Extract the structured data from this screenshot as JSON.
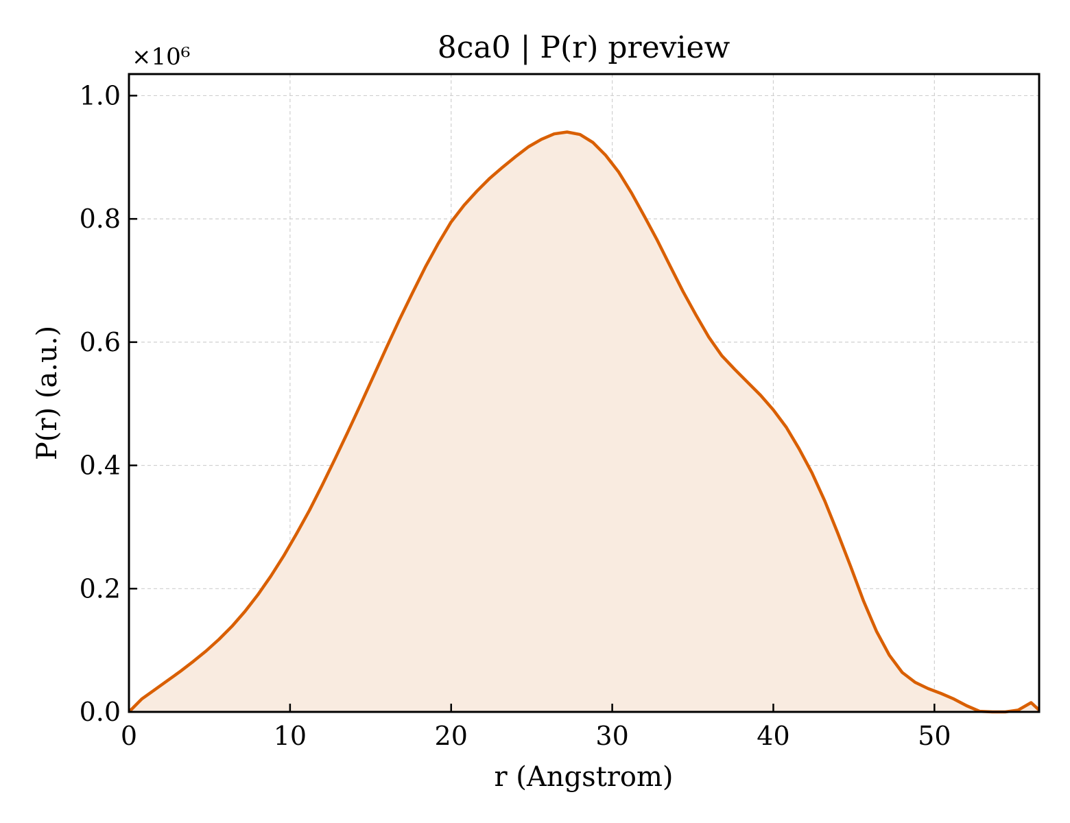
{
  "chart_data": {
    "type": "line",
    "title": "8ca0 | P(r) preview",
    "xlabel": "r (Angstrom)",
    "ylabel": "P(r) (a.u.)",
    "y_offset_label": "×10⁶",
    "xlim": [
      0,
      56.5
    ],
    "ylim": [
      0,
      1.035
    ],
    "x_ticks": [
      0,
      10,
      20,
      30,
      40,
      50
    ],
    "x_tick_labels": [
      "0",
      "10",
      "20",
      "30",
      "40",
      "50"
    ],
    "y_ticks": [
      0.0,
      0.2,
      0.4,
      0.6,
      0.8,
      1.0
    ],
    "y_tick_labels": [
      "0.0",
      "0.2",
      "0.4",
      "0.6",
      "0.8",
      "1.0"
    ],
    "grid": true,
    "line_color": "#d95f02",
    "fill_color": "#f9ebe0",
    "series": [
      {
        "x": [
          0,
          0.8,
          1.6,
          2.4,
          3.2,
          4.0,
          4.8,
          5.6,
          6.4,
          7.2,
          8.0,
          8.8,
          9.6,
          10.4,
          11.2,
          12.0,
          12.8,
          13.6,
          14.4,
          15.2,
          16.0,
          16.8,
          17.6,
          18.4,
          19.2,
          20.0,
          20.8,
          21.6,
          22.4,
          23.2,
          24.0,
          24.8,
          25.6,
          26.4,
          27.2,
          28.0,
          28.8,
          29.6,
          30.4,
          31.2,
          32.0,
          32.8,
          33.6,
          34.4,
          35.2,
          36.0,
          36.8,
          37.6,
          38.4,
          39.2,
          40.0,
          40.8,
          41.6,
          42.4,
          43.2,
          44.0,
          44.8,
          45.6,
          46.4,
          47.2,
          48.0,
          48.8,
          49.6,
          50.4,
          51.2,
          52.0,
          52.8,
          53.6,
          54.4,
          55.2,
          56.0,
          56.5
        ],
        "y": [
          0.0,
          0.021,
          0.036,
          0.051,
          0.066,
          0.082,
          0.099,
          0.118,
          0.139,
          0.163,
          0.19,
          0.22,
          0.253,
          0.289,
          0.327,
          0.368,
          0.411,
          0.455,
          0.5,
          0.546,
          0.592,
          0.637,
          0.68,
          0.722,
          0.76,
          0.795,
          0.822,
          0.845,
          0.866,
          0.884,
          0.901,
          0.917,
          0.929,
          0.938,
          0.941,
          0.937,
          0.924,
          0.903,
          0.876,
          0.842,
          0.804,
          0.765,
          0.723,
          0.682,
          0.644,
          0.608,
          0.578,
          0.556,
          0.535,
          0.514,
          0.49,
          0.462,
          0.427,
          0.388,
          0.342,
          0.29,
          0.236,
          0.18,
          0.131,
          0.092,
          0.064,
          0.048,
          0.038,
          0.03,
          0.021,
          0.01,
          0.001,
          0.0,
          0.0,
          0.003,
          0.015,
          0.003
        ]
      }
    ]
  }
}
